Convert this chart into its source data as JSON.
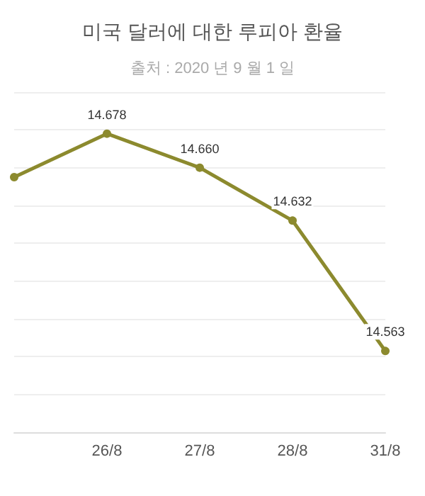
{
  "chart_data": {
    "type": "line",
    "title": "미국 달러에 대한 루피아 환율",
    "subtitle": "출처 : 2020 년 9 월 1 일",
    "categories": [
      null,
      "26/8",
      "27/8",
      "28/8",
      "31/8"
    ],
    "series": [
      {
        "color": "#8c8a2e",
        "values": [
          14.655,
          14.678,
          14.66,
          14.632,
          14.563
        ],
        "value_labels": [
          null,
          "14.678",
          "14.660",
          "14.632",
          "14.563"
        ]
      }
    ],
    "ylim": [
      14.52,
      14.7
    ],
    "yticks": [
      {
        "value": 14.52,
        "label": null
      },
      {
        "value": 14.54,
        "label": null
      },
      {
        "value": 14.56,
        "label": null
      },
      {
        "value": 14.58,
        "label": null
      },
      {
        "value": 14.6,
        "label": null
      },
      {
        "value": 14.62,
        "label": null
      },
      {
        "value": 14.64,
        "label": null
      },
      {
        "value": 14.66,
        "label": null
      },
      {
        "value": 14.68,
        "label": null
      },
      {
        "value": 14.7,
        "label": null
      }
    ],
    "tick_labels": "x",
    "grid": "y",
    "marker": "circle",
    "line_style": "solid"
  }
}
